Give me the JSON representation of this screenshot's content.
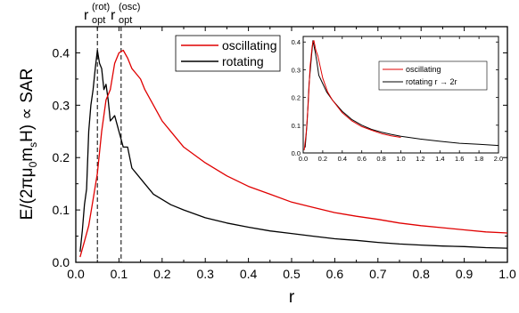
{
  "chart_data": [
    {
      "type": "line",
      "xlabel": "r",
      "ylabel": "E/(2πμ0msH) ∝ SAR",
      "ylabel_parts": {
        "prefix": "E/(2πμ",
        "sub1": "0",
        "mid": "m",
        "sub2": "s",
        "suffix": "H) ∝ SAR"
      },
      "xlim": [
        0.0,
        1.0
      ],
      "ylim": [
        0.0,
        0.45
      ],
      "x_ticks": [
        "0.0",
        "0.1",
        "0.2",
        "0.3",
        "0.4",
        "0.5",
        "0.6",
        "0.7",
        "0.8",
        "0.9",
        "1.0"
      ],
      "y_ticks": [
        "0.0",
        "0.1",
        "0.2",
        "0.3",
        "0.4"
      ],
      "grid": false,
      "legend_position": "top-left of inset",
      "annotations": [
        {
          "base": "r",
          "sup": "(rot)",
          "sub": "opt",
          "x": 0.05
        },
        {
          "base": "r",
          "sup": "(osc)",
          "sub": "opt",
          "x": 0.105
        }
      ],
      "series": [
        {
          "name": "oscillating",
          "color": "#e00000",
          "x": [
            0.01,
            0.02,
            0.03,
            0.04,
            0.05,
            0.06,
            0.07,
            0.08,
            0.09,
            0.1,
            0.11,
            0.12,
            0.13,
            0.14,
            0.15,
            0.16,
            0.18,
            0.2,
            0.22,
            0.25,
            0.3,
            0.35,
            0.4,
            0.45,
            0.5,
            0.55,
            0.6,
            0.65,
            0.7,
            0.75,
            0.8,
            0.85,
            0.9,
            0.95,
            1.0
          ],
          "values": [
            0.01,
            0.04,
            0.07,
            0.12,
            0.17,
            0.25,
            0.31,
            0.33,
            0.38,
            0.4,
            0.405,
            0.39,
            0.37,
            0.36,
            0.35,
            0.33,
            0.3,
            0.27,
            0.25,
            0.22,
            0.19,
            0.165,
            0.145,
            0.13,
            0.115,
            0.105,
            0.095,
            0.088,
            0.082,
            0.075,
            0.07,
            0.066,
            0.062,
            0.058,
            0.056
          ]
        },
        {
          "name": "rotating",
          "color": "#000000",
          "x": [
            0.01,
            0.015,
            0.02,
            0.025,
            0.03,
            0.035,
            0.04,
            0.045,
            0.05,
            0.055,
            0.06,
            0.065,
            0.07,
            0.075,
            0.08,
            0.09,
            0.1,
            0.11,
            0.12,
            0.13,
            0.14,
            0.15,
            0.16,
            0.18,
            0.2,
            0.22,
            0.25,
            0.3,
            0.35,
            0.4,
            0.45,
            0.5,
            0.55,
            0.6,
            0.65,
            0.7,
            0.75,
            0.8,
            0.85,
            0.9,
            0.95,
            1.0
          ],
          "values": [
            0.02,
            0.06,
            0.11,
            0.14,
            0.25,
            0.3,
            0.33,
            0.37,
            0.405,
            0.38,
            0.37,
            0.33,
            0.34,
            0.31,
            0.27,
            0.28,
            0.25,
            0.22,
            0.22,
            0.18,
            0.17,
            0.16,
            0.15,
            0.13,
            0.12,
            0.11,
            0.1,
            0.085,
            0.075,
            0.067,
            0.06,
            0.055,
            0.05,
            0.045,
            0.042,
            0.038,
            0.035,
            0.033,
            0.031,
            0.03,
            0.028,
            0.027
          ]
        }
      ]
    },
    {
      "type": "line",
      "inset": true,
      "xlim": [
        0.0,
        2.0
      ],
      "ylim": [
        0.0,
        0.42
      ],
      "x_ticks": [
        "0.0",
        "0.2",
        "0.4",
        "0.6",
        "0.8",
        "1.0",
        "1.2",
        "1.4",
        "1.6",
        "1.8",
        "2.0"
      ],
      "y_ticks": [
        "0.0",
        "0.1",
        "0.2",
        "0.3",
        "0.4"
      ],
      "legend_position": "top-right",
      "series": [
        {
          "name": "oscillating",
          "color": "#e00000",
          "x": [
            0.01,
            0.03,
            0.05,
            0.07,
            0.09,
            0.1,
            0.11,
            0.13,
            0.15,
            0.2,
            0.25,
            0.3,
            0.4,
            0.5,
            0.6,
            0.7,
            0.8,
            0.9,
            1.0
          ],
          "values": [
            0.01,
            0.07,
            0.17,
            0.31,
            0.38,
            0.4,
            0.405,
            0.37,
            0.35,
            0.27,
            0.22,
            0.19,
            0.145,
            0.115,
            0.095,
            0.082,
            0.07,
            0.062,
            0.056
          ]
        },
        {
          "name": "rotating r → 2r",
          "color": "#000000",
          "x": [
            0.02,
            0.04,
            0.06,
            0.08,
            0.1,
            0.12,
            0.14,
            0.16,
            0.2,
            0.24,
            0.3,
            0.4,
            0.5,
            0.6,
            0.7,
            0.8,
            0.9,
            1.0,
            1.2,
            1.4,
            1.6,
            1.8,
            2.0
          ],
          "values": [
            0.02,
            0.11,
            0.25,
            0.33,
            0.405,
            0.37,
            0.33,
            0.28,
            0.25,
            0.22,
            0.19,
            0.15,
            0.12,
            0.1,
            0.085,
            0.075,
            0.067,
            0.06,
            0.05,
            0.042,
            0.035,
            0.031,
            0.027
          ]
        }
      ]
    }
  ]
}
